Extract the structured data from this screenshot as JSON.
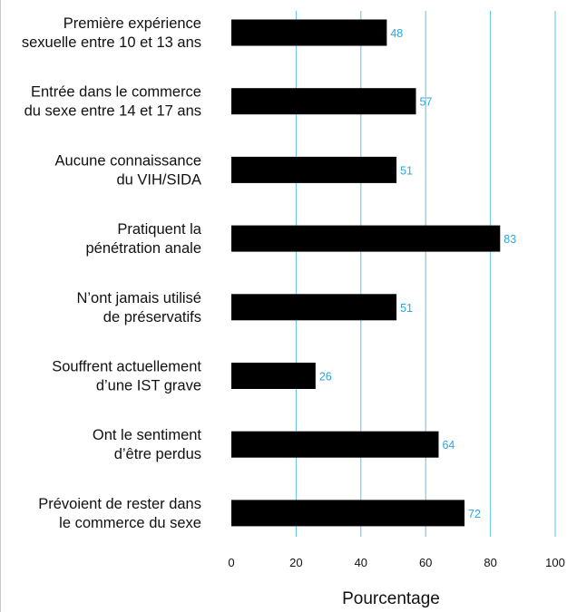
{
  "chart_data": {
    "type": "bar",
    "orientation": "horizontal",
    "categories": [
      [
        "Première expérience",
        "sexuelle entre 10 et 13 ans"
      ],
      [
        "Entrée dans le commerce",
        "du sexe entre 14 et 17 ans"
      ],
      [
        "Aucune connaissance",
        "du VIH/SIDA"
      ],
      [
        "Pratiquent la",
        "pénétration anale"
      ],
      [
        "N’ont jamais utilisé",
        "de préservatifs"
      ],
      [
        "Souffrent actuellement",
        "d’une IST grave"
      ],
      [
        "Ont le sentiment",
        "d’être perdus"
      ],
      [
        "Prévoient de rester dans",
        "le commerce du sexe"
      ]
    ],
    "values": [
      48,
      57,
      51,
      83,
      51,
      26,
      64,
      72
    ],
    "xlabel": "Pourcentage",
    "xlim": [
      0,
      100
    ],
    "xticks": [
      0,
      20,
      40,
      60,
      80,
      100
    ],
    "grid": "vertical",
    "colors": {
      "bar": "#000000",
      "gridline": "#5ec3ea",
      "value_label": "#2aa8e0",
      "frame": "#c8c8c8"
    }
  }
}
